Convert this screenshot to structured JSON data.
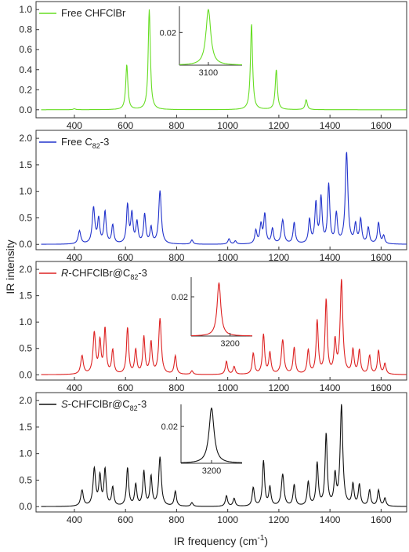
{
  "figure": {
    "ylabel": "IR intensity",
    "xlabel": "IR frequency (cm",
    "xlabel_sup": "-1",
    "xlabel_close": ")"
  },
  "chart_data": [
    {
      "type": "line",
      "series": [
        {
          "name": "Free CHFClBr",
          "color": "#66dd22",
          "peaks": [
            [
              605,
              0.45,
              5
            ],
            [
              693,
              1.0,
              5
            ],
            [
              1093,
              0.86,
              5
            ],
            [
              1190,
              0.4,
              5
            ],
            [
              1307,
              0.1,
              5
            ],
            [
              400,
              0.01,
              5
            ]
          ]
        }
      ],
      "legend_parts": [
        "Free CHFClBr"
      ],
      "xlim": [
        250,
        1700
      ],
      "ylim": [
        -0.08,
        1.08
      ],
      "yticks": [
        0.0,
        0.2,
        0.4,
        0.6,
        0.8,
        1.0
      ],
      "yticklabels": [
        "0.0",
        "0.2",
        "0.4",
        "0.6",
        "0.8",
        "1.0"
      ],
      "inset": {
        "xtick": 3100,
        "xtick_label": "3100",
        "ytick": 0.02,
        "ytick_label": "0.02",
        "xlim": [
          3040,
          3170
        ],
        "ylim": [
          0,
          0.036
        ],
        "peak": [
          3100,
          0.034,
          6
        ]
      }
    },
    {
      "type": "line",
      "series": [
        {
          "name": "Free C82-3",
          "color": "#2233cc",
          "peaks": [
            [
              420,
              0.25,
              6
            ],
            [
              475,
              0.68,
              6
            ],
            [
              495,
              0.45,
              5
            ],
            [
              520,
              0.6,
              5
            ],
            [
              550,
              0.35,
              5
            ],
            [
              608,
              0.72,
              5
            ],
            [
              625,
              0.55,
              5
            ],
            [
              645,
              0.4,
              5
            ],
            [
              675,
              0.55,
              5
            ],
            [
              700,
              0.3,
              5
            ],
            [
              735,
              1.0,
              6
            ],
            [
              860,
              0.08,
              5
            ],
            [
              1005,
              0.1,
              5
            ],
            [
              1030,
              0.06,
              5
            ],
            [
              1110,
              0.25,
              5
            ],
            [
              1130,
              0.35,
              5
            ],
            [
              1145,
              0.55,
              5
            ],
            [
              1175,
              0.28,
              5
            ],
            [
              1215,
              0.45,
              6
            ],
            [
              1260,
              0.4,
              5
            ],
            [
              1320,
              0.45,
              5
            ],
            [
              1345,
              0.75,
              5
            ],
            [
              1365,
              0.85,
              5
            ],
            [
              1395,
              1.1,
              5
            ],
            [
              1425,
              0.55,
              5
            ],
            [
              1465,
              1.72,
              6
            ],
            [
              1500,
              0.35,
              5
            ],
            [
              1520,
              0.45,
              5
            ],
            [
              1550,
              0.3,
              5
            ],
            [
              1590,
              0.4,
              5
            ],
            [
              1610,
              0.15,
              5
            ]
          ]
        }
      ],
      "legend_parts": [
        "Free C",
        "82",
        "-3"
      ],
      "xlim": [
        250,
        1700
      ],
      "ylim": [
        -0.1,
        2.15
      ],
      "yticks": [
        0.0,
        0.5,
        1.0,
        1.5,
        2.0
      ],
      "yticklabels": [
        "0.0",
        "0.5",
        "1.0",
        "1.5",
        "2.0"
      ]
    },
    {
      "type": "line",
      "series": [
        {
          "name": "R-CHFClBr@C82-3",
          "color": "#dd2222",
          "peaks": [
            [
              430,
              0.35,
              6
            ],
            [
              478,
              0.78,
              6
            ],
            [
              500,
              0.6,
              5
            ],
            [
              520,
              0.85,
              5
            ],
            [
              550,
              0.45,
              5
            ],
            [
              608,
              0.88,
              5
            ],
            [
              640,
              0.45,
              5
            ],
            [
              672,
              0.7,
              5
            ],
            [
              700,
              0.6,
              5
            ],
            [
              735,
              1.05,
              6
            ],
            [
              795,
              0.35,
              5
            ],
            [
              860,
              0.07,
              5
            ],
            [
              995,
              0.25,
              5
            ],
            [
              1025,
              0.15,
              5
            ],
            [
              1100,
              0.4,
              5
            ],
            [
              1140,
              0.75,
              5
            ],
            [
              1165,
              0.4,
              5
            ],
            [
              1215,
              0.65,
              6
            ],
            [
              1260,
              0.5,
              5
            ],
            [
              1315,
              0.45,
              5
            ],
            [
              1350,
              1.0,
              5
            ],
            [
              1385,
              1.4,
              5
            ],
            [
              1420,
              0.6,
              5
            ],
            [
              1445,
              1.78,
              6
            ],
            [
              1490,
              0.45,
              5
            ],
            [
              1515,
              0.45,
              5
            ],
            [
              1555,
              0.35,
              5
            ],
            [
              1590,
              0.45,
              5
            ],
            [
              1615,
              0.2,
              5
            ]
          ]
        }
      ],
      "legend_prefix": "R",
      "legend_parts": [
        "-CHFClBr@C",
        "82",
        "-3"
      ],
      "xlim": [
        250,
        1700
      ],
      "ylim": [
        -0.1,
        2.15
      ],
      "yticks": [
        0.0,
        0.5,
        1.0,
        1.5,
        2.0
      ],
      "yticklabels": [
        "0.0",
        "0.5",
        "1.0",
        "1.5",
        "2.0"
      ],
      "inset": {
        "xtick": 3200,
        "xtick_label": "3200",
        "ytick": 0.02,
        "ytick_label": "0.02",
        "xlim": [
          3130,
          3240
        ],
        "ylim": [
          0,
          0.03
        ],
        "peak": [
          3180,
          0.027,
          4
        ]
      }
    },
    {
      "type": "line",
      "series": [
        {
          "name": "S-CHFClBr@C82-3",
          "color": "#111111",
          "peaks": [
            [
              430,
              0.3,
              6
            ],
            [
              478,
              0.7,
              6
            ],
            [
              500,
              0.55,
              5
            ],
            [
              520,
              0.68,
              5
            ],
            [
              550,
              0.35,
              5
            ],
            [
              608,
              0.72,
              5
            ],
            [
              640,
              0.4,
              5
            ],
            [
              672,
              0.65,
              5
            ],
            [
              700,
              0.55,
              5
            ],
            [
              735,
              0.92,
              6
            ],
            [
              795,
              0.28,
              5
            ],
            [
              860,
              0.07,
              5
            ],
            [
              995,
              0.2,
              5
            ],
            [
              1025,
              0.15,
              5
            ],
            [
              1100,
              0.35,
              5
            ],
            [
              1140,
              0.85,
              5
            ],
            [
              1165,
              0.35,
              5
            ],
            [
              1215,
              0.6,
              6
            ],
            [
              1260,
              0.4,
              5
            ],
            [
              1315,
              0.45,
              5
            ],
            [
              1350,
              0.8,
              5
            ],
            [
              1385,
              1.35,
              5
            ],
            [
              1420,
              0.55,
              5
            ],
            [
              1445,
              1.9,
              6
            ],
            [
              1490,
              0.4,
              5
            ],
            [
              1515,
              0.4,
              5
            ],
            [
              1555,
              0.3,
              5
            ],
            [
              1590,
              0.3,
              5
            ],
            [
              1615,
              0.15,
              5
            ]
          ]
        }
      ],
      "legend_prefix": "S",
      "legend_parts": [
        "-CHFClBr@C",
        "82",
        "-3"
      ],
      "xlim": [
        250,
        1700
      ],
      "ylim": [
        -0.1,
        2.15
      ],
      "yticks": [
        0.0,
        0.5,
        1.0,
        1.5,
        2.0
      ],
      "yticklabels": [
        "0.0",
        "0.5",
        "1.0",
        "1.5",
        "2.0"
      ],
      "inset": {
        "xtick": 3200,
        "xtick_label": "3200",
        "ytick": 0.02,
        "ytick_label": "0.02",
        "xlim": [
          3150,
          3250
        ],
        "ylim": [
          0,
          0.032
        ],
        "peak": [
          3200,
          0.03,
          5
        ]
      }
    }
  ],
  "xaxis": {
    "ticks": [
      400,
      600,
      800,
      1000,
      1200,
      1400,
      1600
    ],
    "ticklabels": [
      "400",
      "600",
      "800",
      "1000",
      "1200",
      "1400",
      "1600"
    ]
  }
}
